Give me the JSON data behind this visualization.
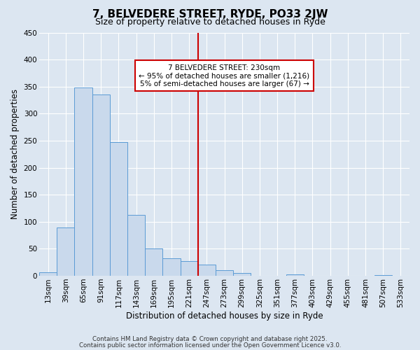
{
  "title": "7, BELVEDERE STREET, RYDE, PO33 2JW",
  "subtitle": "Size of property relative to detached houses in Ryde",
  "xlabel": "Distribution of detached houses by size in Ryde",
  "ylabel": "Number of detached properties",
  "bar_labels": [
    "13sqm",
    "39sqm",
    "65sqm",
    "91sqm",
    "117sqm",
    "143sqm",
    "169sqm",
    "195sqm",
    "221sqm",
    "247sqm",
    "273sqm",
    "299sqm",
    "325sqm",
    "351sqm",
    "377sqm",
    "403sqm",
    "429sqm",
    "455sqm",
    "481sqm",
    "507sqm",
    "533sqm"
  ],
  "bar_values": [
    7,
    89,
    349,
    335,
    247,
    113,
    50,
    32,
    27,
    21,
    10,
    5,
    0,
    0,
    2,
    0,
    0,
    0,
    0,
    1,
    0
  ],
  "bar_color": "#c9d9ec",
  "bar_edge_color": "#5b9bd5",
  "vline_x": 8.5,
  "vline_color": "#cc0000",
  "marker_label": "7 BELVEDERE STREET: 230sqm",
  "annotation_line1": "← 95% of detached houses are smaller (1,216)",
  "annotation_line2": "5% of semi-detached houses are larger (67) →",
  "ylim": [
    0,
    450
  ],
  "yticks": [
    0,
    50,
    100,
    150,
    200,
    250,
    300,
    350,
    400,
    450
  ],
  "background_color": "#dce6f1",
  "grid_color": "#ffffff",
  "title_fontsize": 11,
  "subtitle_fontsize": 9,
  "axis_label_fontsize": 8.5,
  "tick_fontsize": 7.5,
  "footnote1": "Contains HM Land Registry data © Crown copyright and database right 2025.",
  "footnote2": "Contains public sector information licensed under the Open Government Licence v3.0."
}
